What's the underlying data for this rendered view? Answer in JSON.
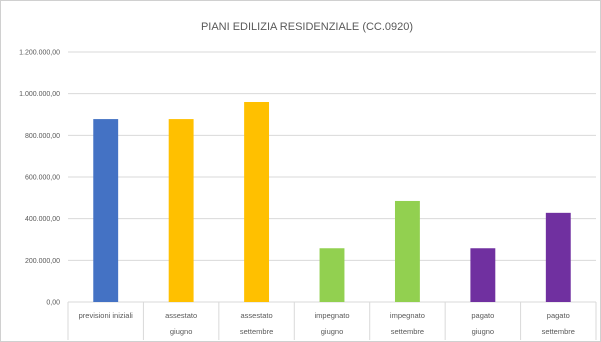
{
  "chart_data": {
    "type": "bar",
    "title": "PIANI EDILIZIA RESIDENZIALE (CC.0920)",
    "xlabel": "",
    "ylabel": "",
    "ylim": [
      0,
      1200000
    ],
    "yticks": [
      0,
      200000,
      400000,
      600000,
      800000,
      1000000,
      1200000
    ],
    "ytick_labels": [
      "0,00",
      "200.000,00",
      "400.000,00",
      "600.000,00",
      "800.000,00",
      "1.000.000,00",
      "1.200.000,00"
    ],
    "grid": true,
    "legend": "none",
    "categories": [
      [
        "previsioni iniziali"
      ],
      [
        "assestato",
        "giugno"
      ],
      [
        "assestato",
        "settembre"
      ],
      [
        "impegnato",
        "giugno"
      ],
      [
        "impegnato",
        "settembre"
      ],
      [
        "pagato",
        "giugno"
      ],
      [
        "pagato",
        "settembre"
      ]
    ],
    "values": [
      878000,
      878000,
      960000,
      258000,
      485000,
      258000,
      428000
    ],
    "colors": [
      "#4472C4",
      "#FFC000",
      "#FFC000",
      "#92D050",
      "#92D050",
      "#7030A0",
      "#7030A0"
    ]
  }
}
